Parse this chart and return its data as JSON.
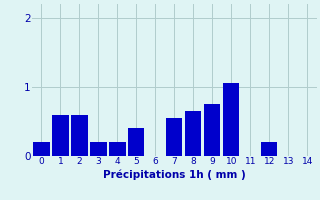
{
  "categories": [
    0,
    1,
    2,
    3,
    4,
    5,
    6,
    7,
    8,
    9,
    10,
    11,
    12,
    13,
    14
  ],
  "values": [
    0.2,
    0.6,
    0.6,
    0.2,
    0.2,
    0.4,
    0.0,
    0.55,
    0.65,
    0.75,
    1.05,
    0.0,
    0.2,
    0.0,
    0.0
  ],
  "bar_color": "#0000cc",
  "bg_color": "#dff4f4",
  "grid_color": "#b0cccc",
  "xlabel": "Précipitations 1h ( mm )",
  "xlabel_color": "#0000aa",
  "tick_color": "#0000aa",
  "ylim": [
    0,
    2.2
  ],
  "yticks": [
    0,
    1,
    2
  ],
  "bar_width": 0.85
}
